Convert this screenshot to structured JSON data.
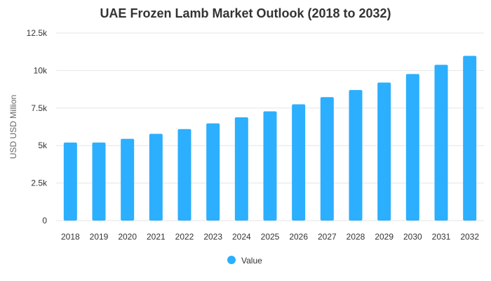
{
  "chart_data": {
    "type": "bar",
    "title": "UAE Frozen Lamb Market Outlook (2018 to 2032)",
    "xlabel": "",
    "ylabel": "USD USD Million",
    "ylim": [
      0,
      12500
    ],
    "y_ticks": [
      {
        "value": 0,
        "label": "0"
      },
      {
        "value": 2500,
        "label": "2.5k"
      },
      {
        "value": 5000,
        "label": "5k"
      },
      {
        "value": 7500,
        "label": "7.5k"
      },
      {
        "value": 10000,
        "label": "10k"
      },
      {
        "value": 12500,
        "label": "12.5k"
      }
    ],
    "categories": [
      "2018",
      "2019",
      "2020",
      "2021",
      "2022",
      "2023",
      "2024",
      "2025",
      "2026",
      "2027",
      "2028",
      "2029",
      "2030",
      "2031",
      "2032"
    ],
    "series": [
      {
        "name": "Value",
        "color": "#2caffe",
        "values": [
          5200,
          5200,
          5450,
          5780,
          6100,
          6480,
          6880,
          7280,
          7750,
          8230,
          8700,
          9200,
          9770,
          10380,
          10980
        ]
      }
    ],
    "grid": true,
    "legend_position": "bottom-center"
  }
}
